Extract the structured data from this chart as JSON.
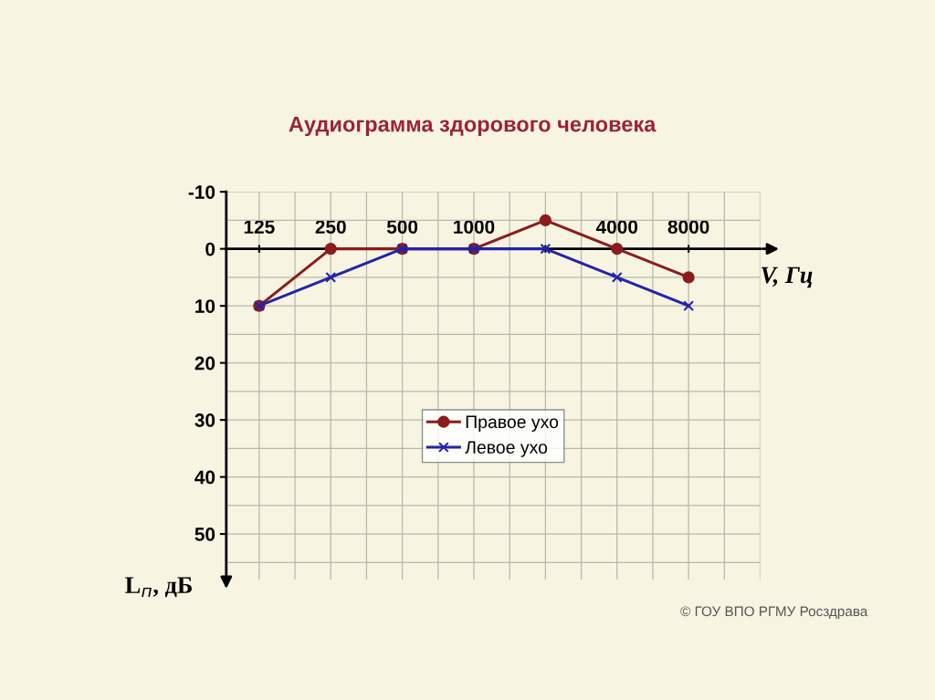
{
  "chart_data": {
    "type": "line",
    "title": "Аудиограмма здорового человека",
    "xlabel": "V, Гц",
    "ylabel": "L$_{п}$, дБ",
    "categories": [
      "125",
      "250",
      "500",
      "1000",
      null,
      "4000",
      "8000"
    ],
    "series": [
      {
        "name": "Правое ухо",
        "color": "#8b1c1c",
        "marker": "circle",
        "values": [
          10,
          0,
          0,
          0,
          -5,
          0,
          5
        ]
      },
      {
        "name": "Левое ухо",
        "color": "#2323a8",
        "marker": "cross",
        "values": [
          10,
          5,
          0,
          0,
          0,
          5,
          10
        ]
      }
    ],
    "ylim": [
      58,
      -10
    ],
    "yticks": [
      -10,
      0,
      10,
      20,
      30,
      40,
      50
    ],
    "grid": true,
    "legend": "center",
    "line_style": "solid",
    "annotations": [
      "© ГОУ ВПО РГМУ Росздрава"
    ]
  }
}
